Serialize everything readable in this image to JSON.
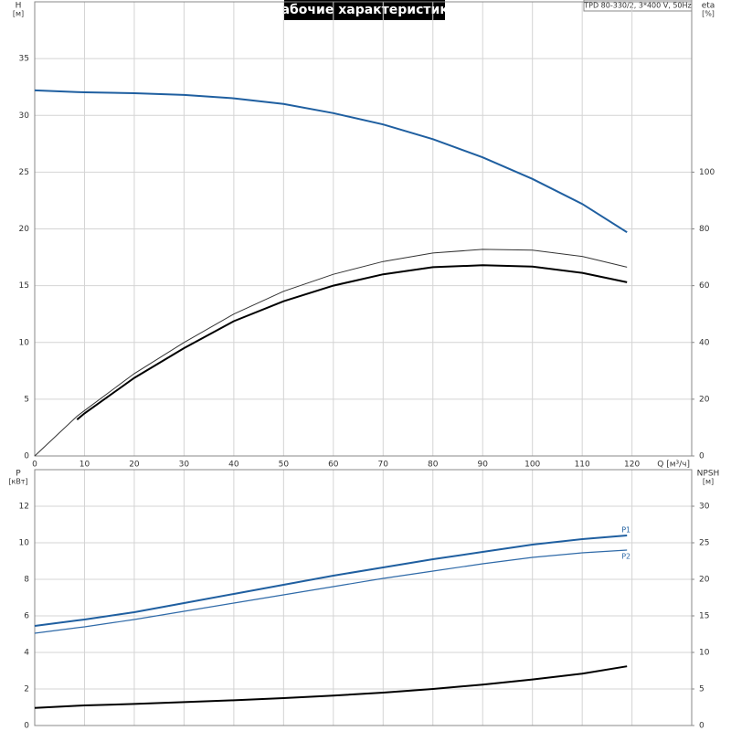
{
  "chart_data": [
    {
      "type": "line",
      "title": "Рабочие характеристики",
      "subtitle": "TPD 80-330/2, 3*400 V, 50Hz",
      "y_label": "H",
      "y_unit": "[м]",
      "y2_label": "eta",
      "y2_unit": "[%]",
      "x_label": "Q [м³/ч]",
      "x": [
        0,
        8.5,
        10,
        20,
        30,
        40,
        50,
        60,
        70,
        80,
        90,
        100,
        110,
        119
      ],
      "xlim": [
        0,
        132
      ],
      "xticks": [
        0,
        10,
        20,
        30,
        40,
        50,
        60,
        70,
        80,
        90,
        100,
        110,
        120
      ],
      "ylim": [
        0,
        40
      ],
      "yticks": [
        0,
        5,
        10,
        15,
        20,
        25,
        30,
        35
      ],
      "y2lim": [
        0,
        160
      ],
      "y2ticks": [
        0,
        20,
        40,
        60,
        80,
        100
      ],
      "grid": true,
      "series": [
        {
          "color": "#1f5fa0",
          "width": 2,
          "values": [
            32.2,
            32.05,
            32.03,
            31.95,
            31.8,
            31.5,
            31.0,
            30.2,
            29.2,
            27.9,
            26.3,
            24.4,
            22.2,
            19.7
          ]
        },
        {
          "color": "#333333",
          "width": 1,
          "axis": "y2",
          "values": [
            0,
            14,
            16,
            29,
            40,
            50,
            58,
            64,
            68.5,
            71.5,
            72.8,
            72.5,
            70.3,
            66.5
          ]
        },
        {
          "color": "#000000",
          "width": 2,
          "axis": "y2",
          "values": [
            null,
            12.8,
            15,
            27.5,
            38,
            47.5,
            54.5,
            60,
            64,
            66.5,
            67.2,
            66.7,
            64.5,
            61.2
          ]
        }
      ]
    },
    {
      "type": "line",
      "y_label": "P",
      "y_unit": "[кВт]",
      "y2_label": "NPSH",
      "y2_unit": "[м]",
      "x": [
        0,
        8.5,
        10,
        20,
        30,
        40,
        50,
        60,
        70,
        80,
        90,
        100,
        110,
        119
      ],
      "xlim": [
        0,
        132
      ],
      "ylim": [
        0,
        14
      ],
      "yticks": [
        0,
        2,
        4,
        6,
        8,
        10,
        12
      ],
      "y2lim": [
        0,
        35
      ],
      "y2ticks": [
        0,
        5,
        10,
        15,
        20,
        25,
        30
      ],
      "grid": true,
      "series": [
        {
          "name": "P1",
          "color": "#1f5fa0",
          "width": 2,
          "values": [
            5.45,
            5.75,
            5.8,
            6.2,
            6.7,
            7.2,
            7.7,
            8.2,
            8.65,
            9.1,
            9.5,
            9.9,
            10.2,
            10.4
          ]
        },
        {
          "name": "P2",
          "color": "#2f6aa8",
          "width": 1.2,
          "values": [
            5.05,
            5.35,
            5.4,
            5.8,
            6.25,
            6.7,
            7.15,
            7.6,
            8.05,
            8.45,
            8.85,
            9.2,
            9.45,
            9.6
          ]
        },
        {
          "color": "#000000",
          "width": 2,
          "axis": "y2",
          "values": [
            2.4,
            2.7,
            2.75,
            2.95,
            3.2,
            3.45,
            3.75,
            4.1,
            4.5,
            5.0,
            5.6,
            6.3,
            7.1,
            8.1
          ]
        }
      ]
    }
  ]
}
